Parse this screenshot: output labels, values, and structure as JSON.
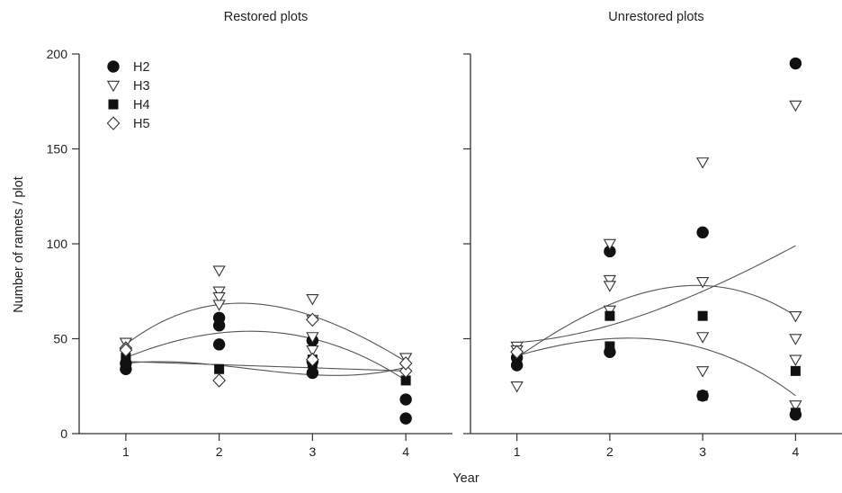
{
  "figure": {
    "ylabel": "Number of ramets / plot",
    "xlabel": "Year"
  },
  "chart_data": [
    {
      "type": "scatter",
      "title": "Restored plots",
      "xlabel": "Year",
      "ylabel": "Number of ramets / plot",
      "x_ticks": [
        1,
        2,
        3,
        4
      ],
      "xlim": [
        0.5,
        4.5
      ],
      "ylim": [
        0,
        200
      ],
      "y_ticks": [
        0,
        50,
        100,
        150,
        200
      ],
      "grid": false,
      "legend_position": "top-left",
      "series": [
        {
          "name": "H2",
          "marker": "filled-circle",
          "points": [
            [
              1,
              34
            ],
            [
              1,
              37
            ],
            [
              2,
              47
            ],
            [
              2,
              57
            ],
            [
              2,
              61
            ],
            [
              3,
              32
            ],
            [
              3,
              49
            ],
            [
              3,
              38
            ],
            [
              4,
              18
            ],
            [
              4,
              8
            ]
          ]
        },
        {
          "name": "H3",
          "marker": "open-triangle-down",
          "points": [
            [
              1,
              48
            ],
            [
              2,
              86
            ],
            [
              2,
              75
            ],
            [
              2,
              72
            ],
            [
              2,
              68
            ],
            [
              3,
              71
            ],
            [
              3,
              60
            ],
            [
              3,
              51
            ],
            [
              3,
              44
            ],
            [
              4,
              40
            ]
          ]
        },
        {
          "name": "H4",
          "marker": "filled-square",
          "points": [
            [
              1,
              40
            ],
            [
              1,
              38
            ],
            [
              2,
              34
            ],
            [
              3,
              37
            ],
            [
              3,
              39
            ],
            [
              4,
              28
            ]
          ]
        },
        {
          "name": "H5",
          "marker": "open-diamond",
          "points": [
            [
              1,
              45
            ],
            [
              1,
              44
            ],
            [
              2,
              28
            ],
            [
              3,
              60
            ],
            [
              3,
              39
            ],
            [
              4,
              33
            ],
            [
              4,
              37
            ]
          ]
        }
      ],
      "fit_curves": [
        {
          "shape": "quadratic",
          "points": [
            [
              1,
              47
            ],
            [
              2,
              68
            ],
            [
              3,
              62
            ],
            [
              4,
              38
            ]
          ]
        },
        {
          "shape": "quadratic",
          "points": [
            [
              1,
              40
            ],
            [
              2,
              53
            ],
            [
              3,
              50
            ],
            [
              4,
              28
            ]
          ]
        },
        {
          "shape": "quadratic",
          "points": [
            [
              1,
              37
            ],
            [
              2,
              36
            ],
            [
              3,
              31
            ],
            [
              4,
              35
            ]
          ]
        },
        {
          "shape": "linear",
          "points": [
            [
              1,
              38
            ],
            [
              4,
              33
            ]
          ]
        }
      ]
    },
    {
      "type": "scatter",
      "title": "Unrestored plots",
      "xlabel": "Year",
      "ylabel": "Number of ramets / plot",
      "x_ticks": [
        1,
        2,
        3,
        4
      ],
      "xlim": [
        0.5,
        4.5
      ],
      "ylim": [
        0,
        200
      ],
      "y_ticks": [
        0,
        50,
        100,
        150,
        200
      ],
      "grid": false,
      "series": [
        {
          "name": "H2",
          "marker": "filled-circle",
          "points": [
            [
              1,
              36
            ],
            [
              1,
              40
            ],
            [
              2,
              96
            ],
            [
              2,
              43
            ],
            [
              3,
              106
            ],
            [
              3,
              20
            ],
            [
              4,
              195
            ],
            [
              4,
              10
            ]
          ]
        },
        {
          "name": "H3",
          "marker": "open-triangle-down",
          "points": [
            [
              1,
              25
            ],
            [
              1,
              46
            ],
            [
              1,
              44
            ],
            [
              2,
              100
            ],
            [
              2,
              81
            ],
            [
              2,
              78
            ],
            [
              2,
              65
            ],
            [
              3,
              143
            ],
            [
              3,
              80
            ],
            [
              3,
              51
            ],
            [
              3,
              33
            ],
            [
              4,
              173
            ],
            [
              4,
              62
            ],
            [
              4,
              50
            ],
            [
              4,
              39
            ],
            [
              4,
              15
            ]
          ]
        },
        {
          "name": "H4",
          "marker": "filled-square",
          "points": [
            [
              1,
              38
            ],
            [
              2,
              62
            ],
            [
              2,
              46
            ],
            [
              3,
              62
            ],
            [
              3,
              20
            ],
            [
              4,
              33
            ],
            [
              4,
              11
            ]
          ]
        },
        {
          "name": "H5",
          "marker": "open-diamond",
          "points": [
            [
              1,
              43
            ]
          ]
        }
      ],
      "fit_curves": [
        {
          "shape": "increasing",
          "points": [
            [
              1,
              48
            ],
            [
              2,
              57
            ],
            [
              3,
              75
            ],
            [
              4,
              99
            ]
          ]
        },
        {
          "shape": "quadratic",
          "points": [
            [
              1,
              40
            ],
            [
              2,
              68
            ],
            [
              3,
              78
            ],
            [
              4,
              62
            ]
          ]
        },
        {
          "shape": "quadratic",
          "points": [
            [
              1,
              41
            ],
            [
              2,
              50
            ],
            [
              3,
              45
            ],
            [
              4,
              20
            ]
          ]
        }
      ]
    }
  ]
}
